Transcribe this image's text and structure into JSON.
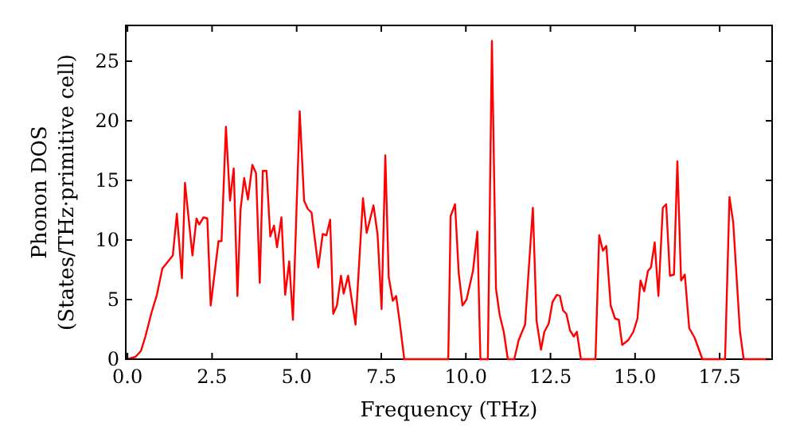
{
  "chart_data": {
    "type": "line",
    "xlabel": "Frequency (THz)",
    "ylabel": "Phonon DOS\n(States/THz·primitive cell)",
    "xlim": [
      -0.05,
      19.05
    ],
    "ylim": [
      0,
      28
    ],
    "xticks": [
      {
        "value": 0,
        "label": "0.0"
      },
      {
        "value": 2.5,
        "label": "2.5"
      },
      {
        "value": 5,
        "label": "5.0"
      },
      {
        "value": 7.5,
        "label": "7.5"
      },
      {
        "value": 10,
        "label": "10.0"
      },
      {
        "value": 12.5,
        "label": "12.5"
      },
      {
        "value": 15,
        "label": "15.0"
      },
      {
        "value": 17.5,
        "label": "17.5"
      }
    ],
    "yticks": [
      0,
      5,
      10,
      15,
      20,
      25
    ],
    "grid": false,
    "series": [
      {
        "color": "#ff0000",
        "x": [
          0.0,
          0.24,
          0.4,
          0.53,
          0.71,
          0.87,
          1.03,
          1.34,
          1.46,
          1.61,
          1.7,
          1.92,
          2.04,
          2.12,
          2.25,
          2.36,
          2.46,
          2.69,
          2.78,
          2.91,
          3.03,
          3.14,
          3.25,
          3.34,
          3.45,
          3.56,
          3.69,
          3.8,
          3.91,
          4.0,
          4.11,
          4.22,
          4.33,
          4.42,
          4.55,
          4.66,
          4.78,
          4.89,
          5.09,
          5.22,
          5.33,
          5.44,
          5.64,
          5.77,
          5.88,
          5.99,
          6.08,
          6.19,
          6.31,
          6.39,
          6.52,
          6.74,
          6.96,
          7.07,
          7.27,
          7.39,
          7.51,
          7.62,
          7.72,
          7.84,
          7.94,
          8.05,
          8.18,
          9.48,
          9.55,
          9.68,
          9.79,
          9.9,
          10.02,
          10.21,
          10.34,
          10.43,
          10.65,
          10.77,
          10.89,
          11.0,
          11.12,
          11.24,
          11.43,
          11.56,
          11.75,
          11.85,
          11.98,
          12.09,
          12.22,
          12.32,
          12.45,
          12.56,
          12.69,
          12.78,
          12.87,
          12.97,
          13.08,
          13.19,
          13.28,
          13.4,
          13.83,
          13.94,
          14.05,
          14.15,
          14.28,
          14.41,
          14.52,
          14.62,
          14.8,
          14.95,
          15.07,
          15.16,
          15.27,
          15.38,
          15.47,
          15.58,
          15.69,
          15.82,
          15.92,
          16.03,
          16.15,
          16.25,
          16.36,
          16.47,
          16.6,
          16.76,
          16.99,
          17.66,
          17.79,
          17.9,
          18.1,
          18.21,
          19.0
        ],
        "values": [
          0,
          0.2,
          0.7,
          1.9,
          3.9,
          5.4,
          7.6,
          8.7,
          12.2,
          6.8,
          14.8,
          8.7,
          11.8,
          11.3,
          11.9,
          11.8,
          4.5,
          9.9,
          9.9,
          19.5,
          13.3,
          16.0,
          5.3,
          12.5,
          15.2,
          13.4,
          16.3,
          15.6,
          6.4,
          15.8,
          15.8,
          10.3,
          11.2,
          9.4,
          11.9,
          5.4,
          8.2,
          3.3,
          20.8,
          13.3,
          12.6,
          12.3,
          7.7,
          10.5,
          10.4,
          11.7,
          3.8,
          4.5,
          7.0,
          5.5,
          7.0,
          2.9,
          13.5,
          10.6,
          12.9,
          10.5,
          4.2,
          17.1,
          6.9,
          4.9,
          5.3,
          3.0,
          0,
          0,
          12.0,
          13.0,
          7.2,
          4.5,
          5.0,
          7.4,
          10.7,
          0,
          0,
          26.7,
          5.9,
          3.7,
          2.3,
          0,
          0,
          1.6,
          2.9,
          7.2,
          12.7,
          3.2,
          0.8,
          2.3,
          3.0,
          4.8,
          5.4,
          5.3,
          4.1,
          3.8,
          2.4,
          1.9,
          2.3,
          0,
          0,
          10.4,
          9.1,
          9.5,
          4.5,
          3.4,
          3.3,
          1.2,
          1.6,
          2.3,
          3.4,
          6.6,
          5.7,
          7.4,
          7.7,
          9.8,
          5.3,
          12.7,
          13.0,
          7.0,
          7.1,
          16.6,
          6.6,
          7.1,
          2.6,
          1.8,
          0,
          0,
          13.6,
          11.5,
          2.3,
          0,
          0
        ]
      }
    ]
  }
}
